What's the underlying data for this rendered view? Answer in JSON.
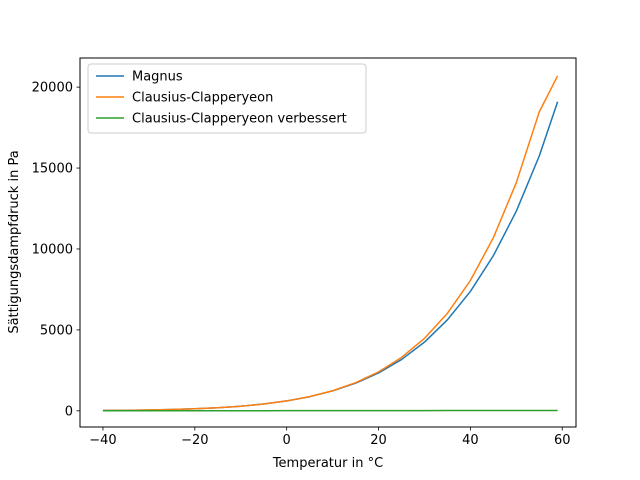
{
  "chart_data": {
    "type": "line",
    "xlabel": "Temperatur in °C",
    "ylabel": "Sättigungsdampfdruck in Pa",
    "xlim": [
      -45,
      63
    ],
    "ylim": [
      -1000,
      21800
    ],
    "xticks": [
      -40,
      -20,
      0,
      20,
      40,
      60
    ],
    "xtick_labels": [
      "−40",
      "−20",
      "0",
      "20",
      "40",
      "60"
    ],
    "yticks": [
      0,
      5000,
      10000,
      15000,
      20000
    ],
    "ytick_labels": [
      "0",
      "5000",
      "10000",
      "15000",
      "20000"
    ],
    "grid": false,
    "legend_position": "top-left",
    "x": [
      -40,
      -35,
      -30,
      -25,
      -20,
      -15,
      -10,
      -5,
      0,
      5,
      10,
      15,
      20,
      25,
      30,
      35,
      40,
      45,
      50,
      55,
      59
    ],
    "series": [
      {
        "name": "Magnus",
        "color": "#1f77b4",
        "values": [
          19,
          31,
          51,
          81,
          126,
          191,
          286,
          422,
          611,
          872,
          1228,
          1705,
          2338,
          3167,
          4243,
          5623,
          7375,
          9581,
          12335,
          15745,
          19100
        ]
      },
      {
        "name": "Clausius-Clapperyeon",
        "color": "#ff7f0e",
        "values": [
          18,
          30,
          49,
          79,
          124,
          189,
          284,
          420,
          611,
          876,
          1241,
          1738,
          2406,
          3296,
          4474,
          6023,
          8052,
          10689,
          14097,
          18471,
          20700
        ]
      },
      {
        "name": "Clausius-Clapperyeon verbessert",
        "color": "#2ca02c",
        "values": [
          2,
          3,
          4,
          4,
          5,
          6,
          7,
          8,
          9,
          10,
          11,
          12,
          13,
          14,
          15,
          16,
          17,
          18,
          19,
          20,
          21
        ]
      }
    ]
  }
}
